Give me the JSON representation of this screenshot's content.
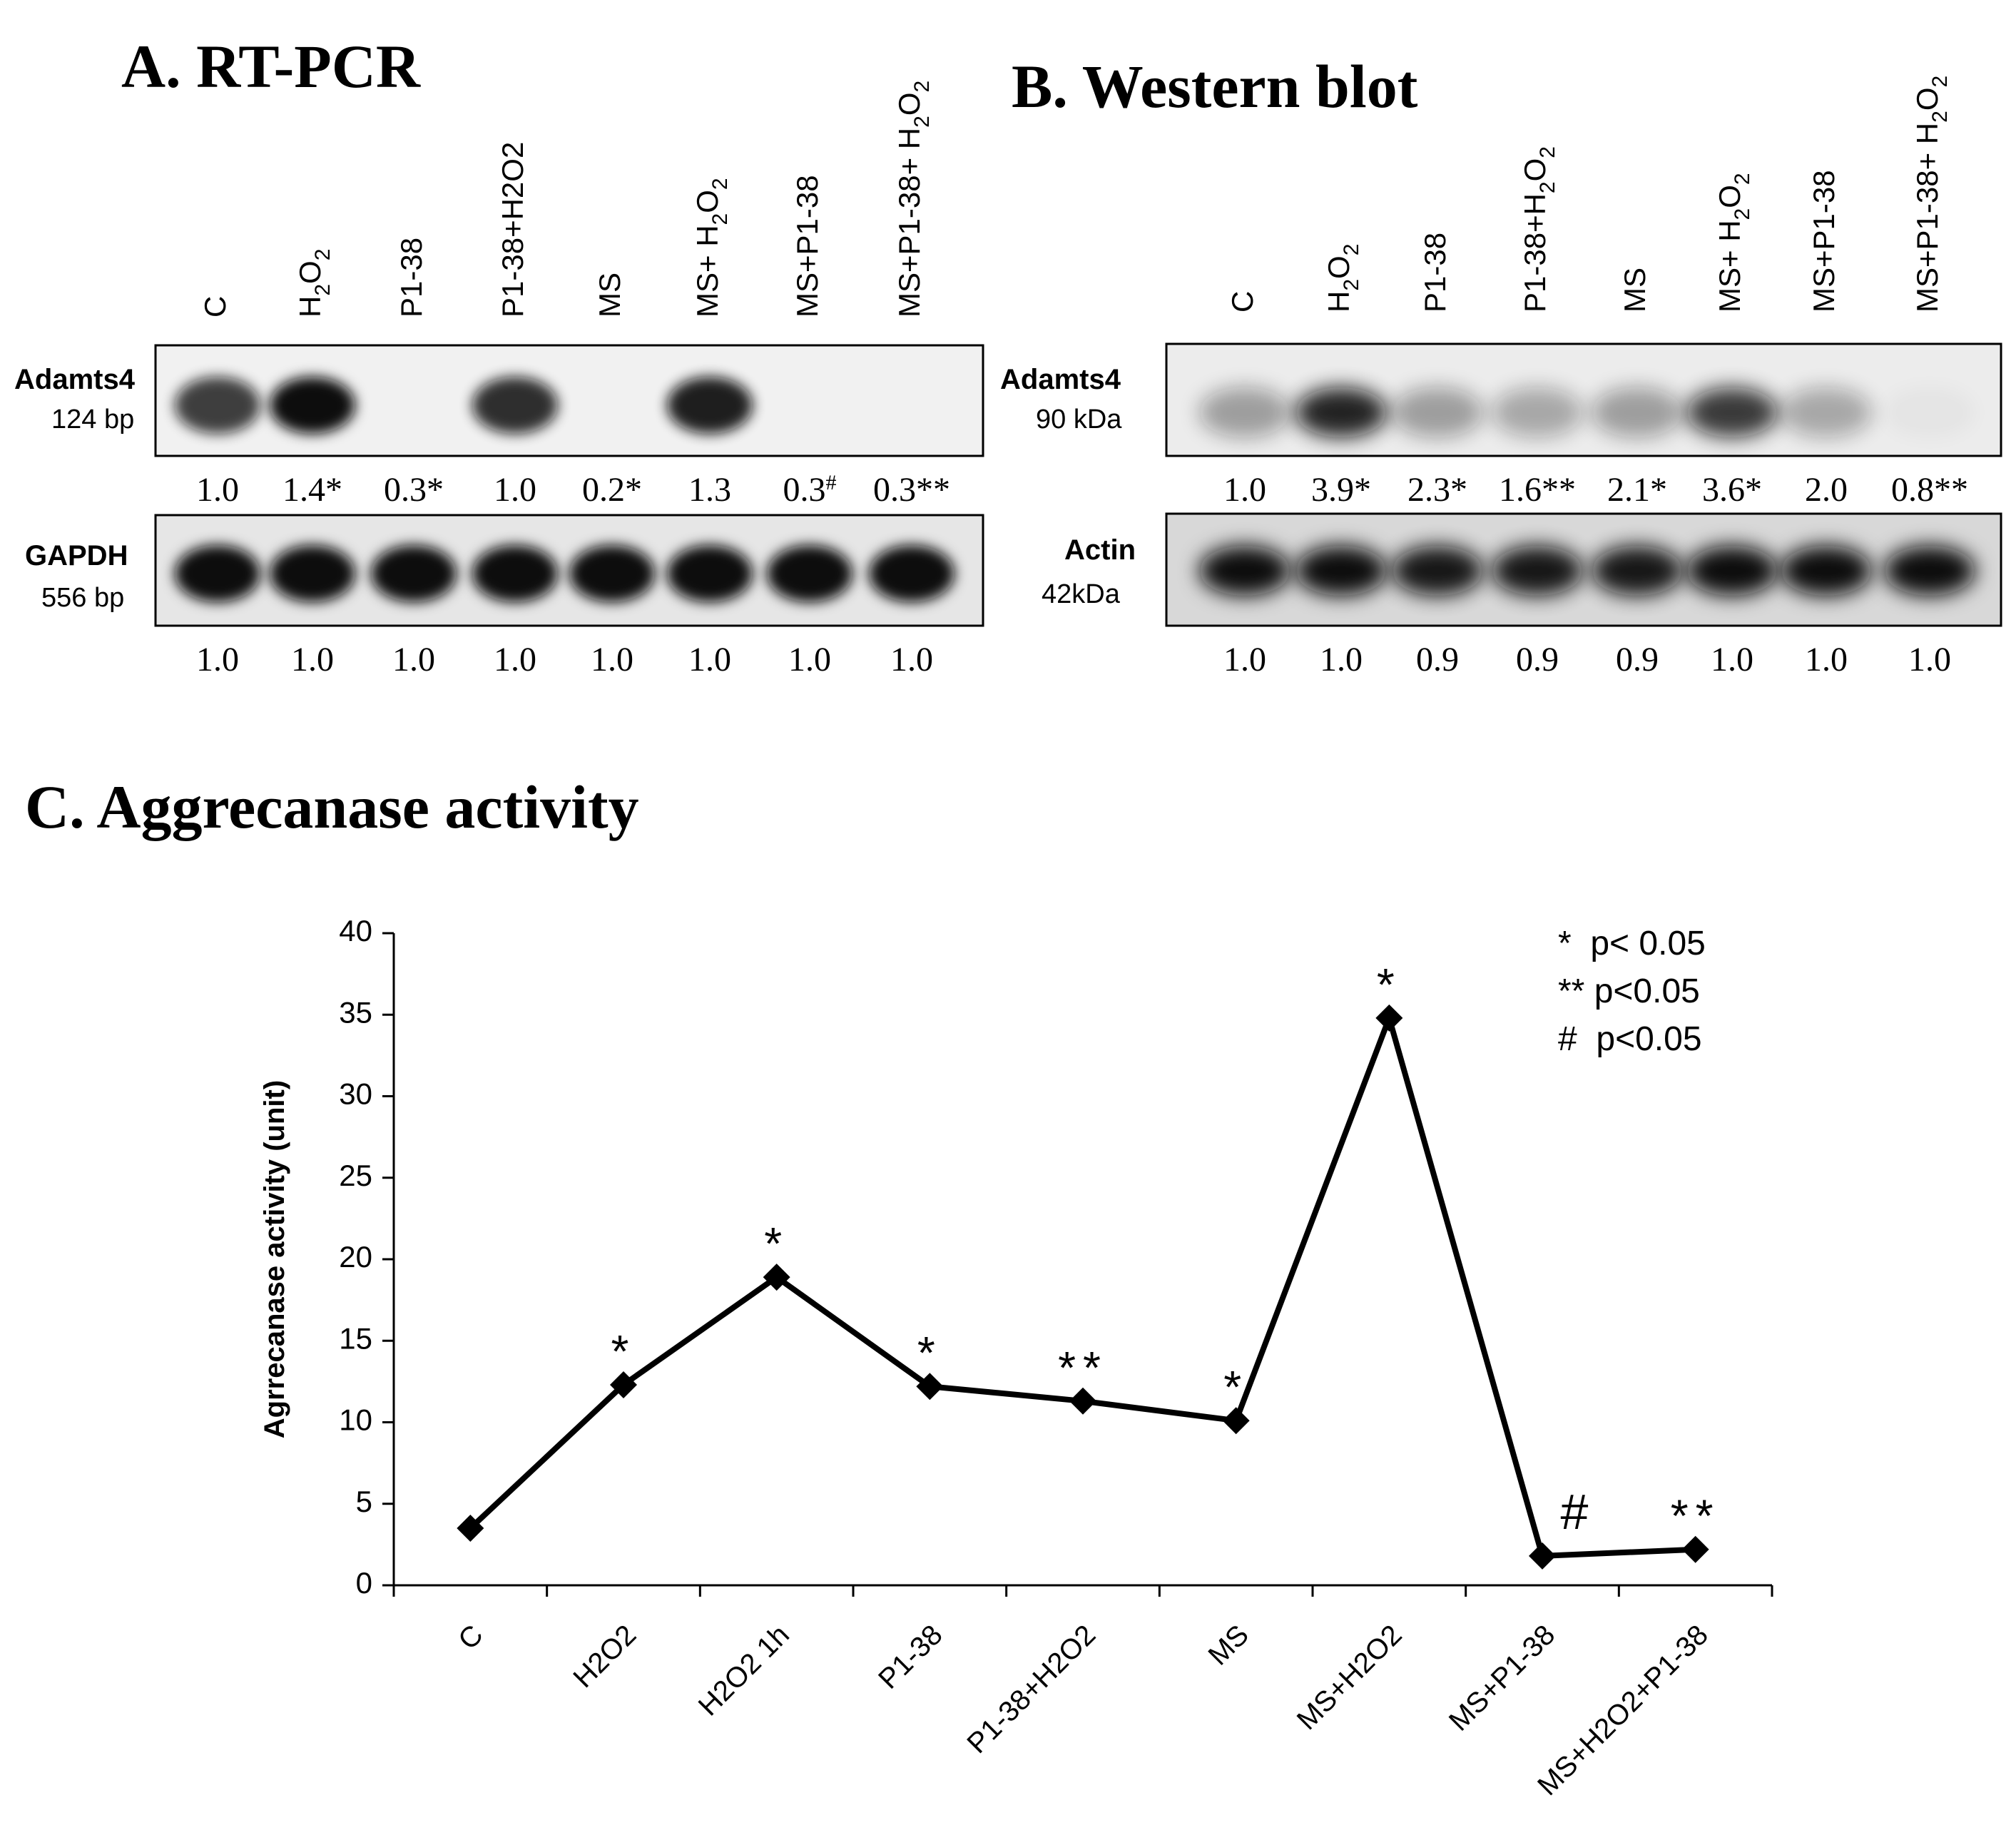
{
  "panel_a": {
    "title": "A. RT-PCR",
    "lanes": [
      {
        "main": "C"
      },
      {
        "main": "H",
        "sub": "2",
        "main2": "O",
        "sub2": "2"
      },
      {
        "main": "P1-38"
      },
      {
        "main": "P1-38+H2O2"
      },
      {
        "main": "MS"
      },
      {
        "main": "MS+ H",
        "sub": "2",
        "main2": "O",
        "sub2": "2"
      },
      {
        "main": "MS+P1-38"
      },
      {
        "main": "MS+P1-38+ H",
        "sub": "2",
        "main2": "O",
        "sub2": "2"
      }
    ],
    "blots": [
      {
        "name": "Adamts4",
        "size": "124 bp",
        "values": [
          "1.0",
          "1.4*",
          "0.3*",
          "1.0",
          "0.2*",
          "1.3",
          "0.3#",
          "0.3**"
        ],
        "intensity": [
          0.78,
          1.0,
          0.0,
          0.85,
          0.0,
          0.92,
          0.0,
          0.0
        ]
      },
      {
        "name": "GAPDH",
        "size": "556 bp",
        "values": [
          "1.0",
          "1.0",
          "1.0",
          "1.0",
          "1.0",
          "1.0",
          "1.0",
          "1.0"
        ],
        "intensity": [
          1,
          1,
          1,
          1,
          1,
          1,
          1,
          1
        ]
      }
    ]
  },
  "panel_b": {
    "title": "B. Western blot",
    "lanes": [
      {
        "main": "C"
      },
      {
        "main": "H",
        "sub": "2",
        "main2": "O",
        "sub2": "2"
      },
      {
        "main": "P1-38"
      },
      {
        "main": "P1-38+H",
        "sub": "2",
        "main2": "O",
        "sub2": "2"
      },
      {
        "main": "MS"
      },
      {
        "main": "MS+ H",
        "sub": "2",
        "main2": "O",
        "sub2": "2"
      },
      {
        "main": "MS+P1-38"
      },
      {
        "main": "MS+P1-38+ H",
        "sub": "2",
        "main2": "O",
        "sub2": "2"
      }
    ],
    "blots": [
      {
        "name": "Adamts4",
        "size": "90 kDa",
        "values": [
          "1.0",
          "3.9*",
          "2.3*",
          "1.6**",
          "2.1*",
          "3.6*",
          "2.0",
          "0.8**"
        ],
        "intensity": [
          0.35,
          0.9,
          0.35,
          0.3,
          0.35,
          0.8,
          0.3,
          0.03
        ]
      },
      {
        "name": "Actin",
        "size": "42kDa",
        "values": [
          "1.0",
          "1.0",
          "0.9",
          "0.9",
          "0.9",
          "1.0",
          "1.0",
          "1.0"
        ],
        "intensity": [
          1,
          1,
          0.95,
          0.95,
          0.95,
          1,
          1,
          1
        ]
      }
    ]
  },
  "panel_c": {
    "title": "C. Aggrecanase activity",
    "legend": [
      "*  p< 0.05",
      "** p<0.05",
      "#  p<0.05"
    ]
  },
  "chart_data": {
    "type": "line",
    "title": "C. Aggrecanase activity",
    "xlabel": "",
    "ylabel": "Agrrecanase activity (unit)",
    "categories": [
      "C",
      "H2O2",
      "H2O2 1h",
      "P1-38",
      "P1-38+H2O2",
      "MS",
      "MS+H2O2",
      "MS+P1-38",
      "MS+H2O2+P1-38"
    ],
    "values": [
      3.5,
      12.3,
      18.9,
      12.2,
      11.3,
      10.1,
      34.8,
      1.8,
      2.2
    ],
    "annotations": [
      "",
      "*",
      "*",
      "*",
      "**",
      "*",
      "*",
      "#",
      "**"
    ],
    "ylim": [
      0,
      40
    ],
    "yticks": [
      "0",
      "5",
      "10",
      "15",
      "20",
      "25",
      "30",
      "35",
      "40"
    ],
    "grid": false,
    "legend_position": "top-right",
    "colors": {
      "line": "#000000"
    }
  }
}
